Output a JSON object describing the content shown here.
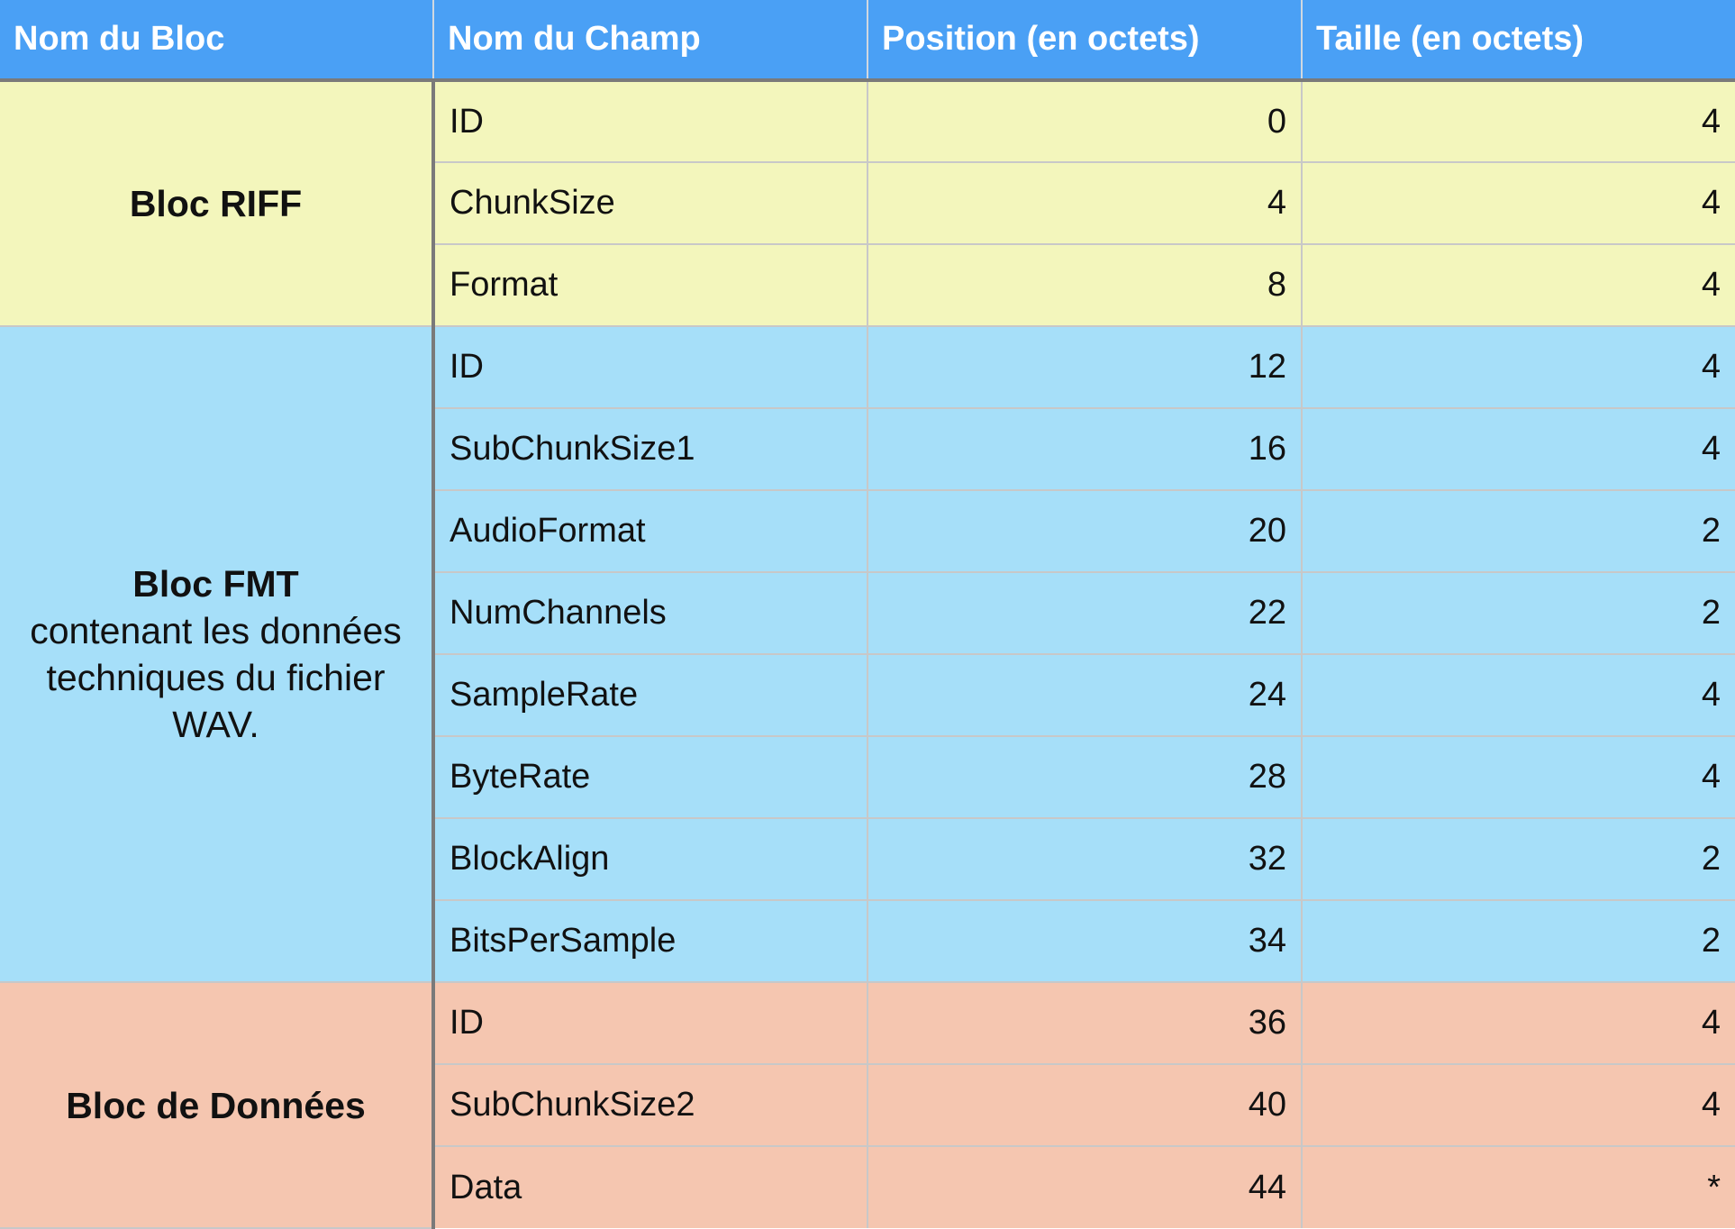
{
  "headers": [
    "Nom du Bloc",
    "Nom du Champ",
    "Position (en octets)",
    "Taille (en octets)"
  ],
  "colors": {
    "header_bg": "#4aa0f5",
    "riff_bg": "#f3f6bc",
    "fmt_bg": "#a6dff9",
    "data_bg": "#f5c6b0"
  },
  "blocks": [
    {
      "name": "Bloc RIFF",
      "description": "",
      "fields": [
        {
          "name": "ID",
          "position": "0",
          "size": "4"
        },
        {
          "name": "ChunkSize",
          "position": "4",
          "size": "4"
        },
        {
          "name": "Format",
          "position": "8",
          "size": "4"
        }
      ]
    },
    {
      "name": "Bloc FMT",
      "description": "contenant les données techniques du fichier WAV.",
      "fields": [
        {
          "name": "ID",
          "position": "12",
          "size": "4"
        },
        {
          "name": "SubChunkSize1",
          "position": "16",
          "size": "4"
        },
        {
          "name": "AudioFormat",
          "position": "20",
          "size": "2"
        },
        {
          "name": "NumChannels",
          "position": "22",
          "size": "2"
        },
        {
          "name": "SampleRate",
          "position": "24",
          "size": "4"
        },
        {
          "name": "ByteRate",
          "position": "28",
          "size": "4"
        },
        {
          "name": "BlockAlign",
          "position": "32",
          "size": "2"
        },
        {
          "name": "BitsPerSample",
          "position": "34",
          "size": "2"
        }
      ]
    },
    {
      "name": "Bloc de Données",
      "description": "",
      "fields": [
        {
          "name": "ID",
          "position": "36",
          "size": "4"
        },
        {
          "name": "SubChunkSize2",
          "position": "40",
          "size": "4"
        },
        {
          "name": "Data",
          "position": "44",
          "size": "*"
        }
      ]
    }
  ]
}
